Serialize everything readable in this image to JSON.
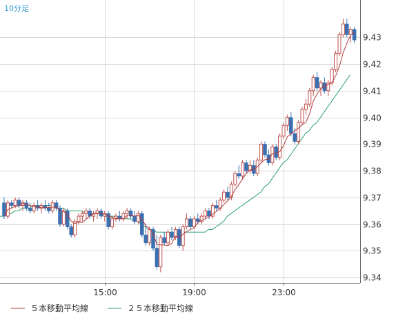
{
  "period_label": "10分足",
  "legend": [
    {
      "label": "５本移動平均線",
      "color": "#b03a3a"
    },
    {
      "label": "２５本移動平均線",
      "color": "#2a9d6e"
    }
  ],
  "colors": {
    "up": "#c0504d",
    "down": "#3a6fb0",
    "ma5": "#b03a3a",
    "ma25": "#2a9d6e",
    "grid": "#d8d8d8",
    "axis": "#666666"
  },
  "chart_data": {
    "type": "candlestick",
    "x_tick_labels": [
      "15:00",
      "19:00",
      "23:00"
    ],
    "x_tick_index": [
      27,
      51,
      75
    ],
    "ylim": [
      9.338,
      9.444
    ],
    "yticks": [
      9.34,
      9.35,
      9.36,
      9.37,
      9.38,
      9.39,
      9.4,
      9.41,
      9.42,
      9.43
    ],
    "grid": true,
    "candles": [
      [
        9.368,
        9.37,
        9.362,
        9.363
      ],
      [
        9.363,
        9.369,
        9.362,
        9.368
      ],
      [
        9.368,
        9.369,
        9.366,
        9.367
      ],
      [
        9.367,
        9.37,
        9.366,
        9.369
      ],
      [
        9.369,
        9.37,
        9.366,
        9.367
      ],
      [
        9.367,
        9.369,
        9.365,
        9.368
      ],
      [
        9.368,
        9.369,
        9.365,
        9.366
      ],
      [
        9.366,
        9.368,
        9.364,
        9.365
      ],
      [
        9.365,
        9.368,
        9.364,
        9.367
      ],
      [
        9.367,
        9.369,
        9.365,
        9.366
      ],
      [
        9.366,
        9.368,
        9.364,
        9.367
      ],
      [
        9.367,
        9.369,
        9.365,
        9.366
      ],
      [
        9.366,
        9.368,
        9.364,
        9.365
      ],
      [
        9.365,
        9.369,
        9.364,
        9.368
      ],
      [
        9.368,
        9.369,
        9.365,
        9.366
      ],
      [
        9.366,
        9.367,
        9.359,
        9.36
      ],
      [
        9.36,
        9.366,
        9.359,
        9.365
      ],
      [
        9.365,
        9.366,
        9.358,
        9.359
      ],
      [
        9.359,
        9.36,
        9.355,
        9.356
      ],
      [
        9.356,
        9.362,
        9.355,
        9.361
      ],
      [
        9.361,
        9.364,
        9.36,
        9.363
      ],
      [
        9.363,
        9.365,
        9.361,
        9.364
      ],
      [
        9.364,
        9.366,
        9.362,
        9.365
      ],
      [
        9.365,
        9.366,
        9.362,
        9.363
      ],
      [
        9.363,
        9.365,
        9.361,
        9.364
      ],
      [
        9.364,
        9.366,
        9.362,
        9.365
      ],
      [
        9.365,
        9.366,
        9.362,
        9.363
      ],
      [
        9.363,
        9.365,
        9.361,
        9.364
      ],
      [
        9.364,
        9.365,
        9.358,
        9.359
      ],
      [
        9.359,
        9.363,
        9.358,
        9.362
      ],
      [
        9.362,
        9.364,
        9.361,
        9.363
      ],
      [
        9.363,
        9.365,
        9.361,
        9.362
      ],
      [
        9.362,
        9.365,
        9.361,
        9.364
      ],
      [
        9.364,
        9.366,
        9.362,
        9.365
      ],
      [
        9.365,
        9.366,
        9.362,
        9.363
      ],
      [
        9.363,
        9.365,
        9.36,
        9.361
      ],
      [
        9.361,
        9.365,
        9.36,
        9.364
      ],
      [
        9.364,
        9.365,
        9.355,
        9.356
      ],
      [
        9.356,
        9.36,
        9.352,
        9.353
      ],
      [
        9.353,
        9.359,
        9.352,
        9.358
      ],
      [
        9.358,
        9.359,
        9.35,
        9.351
      ],
      [
        9.351,
        9.356,
        9.343,
        9.344
      ],
      [
        9.344,
        9.356,
        9.342,
        9.355
      ],
      [
        9.355,
        9.357,
        9.352,
        9.353
      ],
      [
        9.353,
        9.358,
        9.352,
        9.357
      ],
      [
        9.357,
        9.359,
        9.354,
        9.355
      ],
      [
        9.355,
        9.359,
        9.354,
        9.358
      ],
      [
        9.358,
        9.359,
        9.351,
        9.352
      ],
      [
        9.352,
        9.36,
        9.35,
        9.359
      ],
      [
        9.359,
        9.364,
        9.358,
        9.362
      ],
      [
        9.362,
        9.363,
        9.358,
        9.359
      ],
      [
        9.359,
        9.363,
        9.358,
        9.362
      ],
      [
        9.362,
        9.364,
        9.36,
        9.361
      ],
      [
        9.361,
        9.364,
        9.36,
        9.363
      ],
      [
        9.363,
        9.366,
        9.362,
        9.365
      ],
      [
        9.365,
        9.366,
        9.362,
        9.363
      ],
      [
        9.363,
        9.368,
        9.362,
        9.367
      ],
      [
        9.367,
        9.369,
        9.365,
        9.366
      ],
      [
        9.366,
        9.37,
        9.365,
        9.369
      ],
      [
        9.369,
        9.373,
        9.368,
        9.372
      ],
      [
        9.372,
        9.374,
        9.369,
        9.37
      ],
      [
        9.37,
        9.376,
        9.369,
        9.375
      ],
      [
        9.375,
        9.38,
        9.374,
        9.379
      ],
      [
        9.379,
        9.382,
        9.377,
        9.378
      ],
      [
        9.378,
        9.384,
        9.377,
        9.383
      ],
      [
        9.383,
        9.384,
        9.379,
        9.38
      ],
      [
        9.38,
        9.384,
        9.379,
        9.382
      ],
      [
        9.382,
        9.384,
        9.378,
        9.379
      ],
      [
        9.379,
        9.385,
        9.378,
        9.384
      ],
      [
        9.384,
        9.391,
        9.383,
        9.39
      ],
      [
        9.39,
        9.391,
        9.385,
        9.386
      ],
      [
        9.386,
        9.388,
        9.382,
        9.383
      ],
      [
        9.383,
        9.39,
        9.382,
        9.389
      ],
      [
        9.389,
        9.39,
        9.384,
        9.385
      ],
      [
        9.385,
        9.394,
        9.384,
        9.393
      ],
      [
        9.393,
        9.398,
        9.392,
        9.397
      ],
      [
        9.397,
        9.401,
        9.395,
        9.4
      ],
      [
        9.4,
        9.402,
        9.393,
        9.394
      ],
      [
        9.394,
        9.396,
        9.39,
        9.391
      ],
      [
        9.391,
        9.399,
        9.39,
        9.398
      ],
      [
        9.398,
        9.404,
        9.397,
        9.403
      ],
      [
        9.403,
        9.407,
        9.401,
        9.405
      ],
      [
        9.405,
        9.411,
        9.404,
        9.41
      ],
      [
        9.41,
        9.416,
        9.408,
        9.415
      ],
      [
        9.415,
        9.417,
        9.41,
        9.411
      ],
      [
        9.411,
        9.414,
        9.408,
        9.413
      ],
      [
        9.413,
        9.415,
        9.409,
        9.41
      ],
      [
        9.41,
        9.414,
        9.408,
        9.413
      ],
      [
        9.413,
        9.419,
        9.412,
        9.418
      ],
      [
        9.418,
        9.425,
        9.417,
        9.424
      ],
      [
        9.424,
        9.432,
        9.423,
        9.431
      ],
      [
        9.431,
        9.437,
        9.43,
        9.435
      ],
      [
        9.435,
        9.437,
        9.43,
        9.431
      ],
      [
        9.431,
        9.434,
        9.428,
        9.433
      ],
      [
        9.433,
        9.434,
        9.428,
        9.429
      ]
    ],
    "ma25": [
      9.363,
      9.363,
      9.364,
      9.364,
      9.365,
      9.365,
      9.366,
      9.366,
      9.366,
      9.367,
      9.367,
      9.367,
      9.367,
      9.367,
      9.367,
      9.366,
      9.366,
      9.366,
      9.365,
      9.365,
      9.365,
      9.365,
      9.365,
      9.364,
      9.364,
      9.364,
      9.364,
      9.364,
      9.363,
      9.363,
      9.363,
      9.363,
      9.363,
      9.362,
      9.362,
      9.362,
      9.361,
      9.361,
      9.36,
      9.359,
      9.358,
      9.358,
      9.357,
      9.357,
      9.357,
      9.357,
      9.357,
      9.357,
      9.357,
      9.357,
      9.357,
      9.357,
      9.357,
      9.357,
      9.357,
      9.357,
      9.358,
      9.358,
      9.359,
      9.36,
      9.361,
      9.363,
      9.364,
      9.365,
      9.366,
      9.367,
      9.368,
      9.369,
      9.37,
      9.371,
      9.372,
      9.374,
      9.375,
      9.377,
      9.379,
      9.381,
      9.383,
      9.384,
      9.386,
      9.388,
      9.39,
      9.392,
      9.394,
      9.395,
      9.397,
      9.398,
      9.4,
      9.402,
      9.404,
      9.406,
      9.408,
      9.41,
      9.412,
      9.414,
      9.416
    ]
  }
}
